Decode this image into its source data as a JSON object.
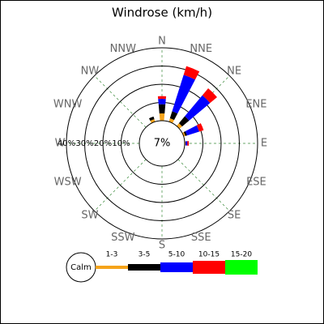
{
  "chart_data": {
    "type": "windrose",
    "title": "Windrose (km/h)",
    "directions": [
      "N",
      "NNE",
      "NE",
      "ENE",
      "E",
      "ESE",
      "SE",
      "SSE",
      "S",
      "SSW",
      "SW",
      "WSW",
      "W",
      "WNW",
      "NW",
      "NNW"
    ],
    "series": [
      {
        "name": "1-3",
        "color": "#f5a31a",
        "values": [
          4,
          2,
          2,
          1,
          0.5,
          0,
          0,
          0,
          0,
          0,
          0,
          0,
          0,
          0,
          0,
          1.5
        ]
      },
      {
        "name": "3-5",
        "color": "#000000",
        "values": [
          5,
          4,
          5,
          1,
          0,
          0,
          0,
          0,
          0,
          0,
          0,
          0,
          0,
          0,
          0,
          1.5
        ]
      },
      {
        "name": "5-10",
        "color": "#0000ff",
        "values": [
          3,
          21,
          15,
          7,
          1,
          0,
          0,
          0,
          0,
          0,
          0,
          0,
          0,
          0,
          0,
          0
        ]
      },
      {
        "name": "10-15",
        "color": "#ff0000",
        "values": [
          1.5,
          5,
          5,
          2.5,
          0.8,
          0,
          0,
          0,
          0,
          0,
          0,
          0,
          0,
          0,
          0,
          0
        ]
      },
      {
        "name": "15-20",
        "color": "#00ff00",
        "values": [
          0,
          0,
          0,
          0,
          0,
          0,
          0,
          0,
          0,
          0,
          0,
          0,
          0,
          0,
          0,
          0
        ]
      }
    ],
    "calm": {
      "value": 7,
      "label": "7%"
    },
    "calm_label": "Calm",
    "rlim": [
      0,
      40
    ],
    "rticks": [
      {
        "value": 10,
        "label": "10%"
      },
      {
        "value": 20,
        "label": "20%"
      },
      {
        "value": 30,
        "label": "30%"
      },
      {
        "value": 40,
        "label": "40%"
      }
    ],
    "grid": true
  }
}
